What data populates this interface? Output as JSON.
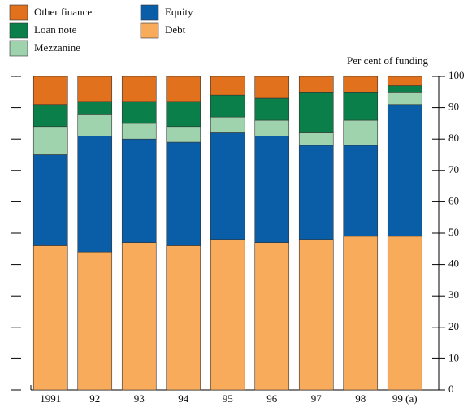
{
  "chart_data": {
    "type": "stacked_bar",
    "y_label": "Per cent of funding",
    "categories": [
      "1991",
      "92",
      "93",
      "94",
      "95",
      "96",
      "97",
      "98",
      "99 (a)"
    ],
    "series": [
      {
        "name": "Debt",
        "color": "#f9ab5c",
        "values": [
          46,
          44,
          47,
          46,
          48,
          47,
          48,
          49,
          49
        ]
      },
      {
        "name": "Equity",
        "color": "#0a5ea8",
        "values": [
          29,
          37,
          33,
          33,
          34,
          34,
          30,
          29,
          42
        ]
      },
      {
        "name": "Mezzanine",
        "color": "#9ed3ae",
        "values": [
          9,
          7,
          5,
          5,
          5,
          5,
          4,
          8,
          4
        ]
      },
      {
        "name": "Loan note",
        "color": "#0a7f4a",
        "values": [
          7,
          4,
          7,
          8,
          7,
          7,
          13,
          9,
          2
        ]
      },
      {
        "name": "Other finance",
        "color": "#e2711d",
        "values": [
          9,
          8,
          8,
          8,
          6,
          7,
          5,
          5,
          3
        ]
      }
    ],
    "ylim": [
      0,
      100
    ],
    "yticks": [
      0,
      10,
      20,
      30,
      40,
      50,
      60,
      70,
      80,
      90,
      100
    ]
  }
}
